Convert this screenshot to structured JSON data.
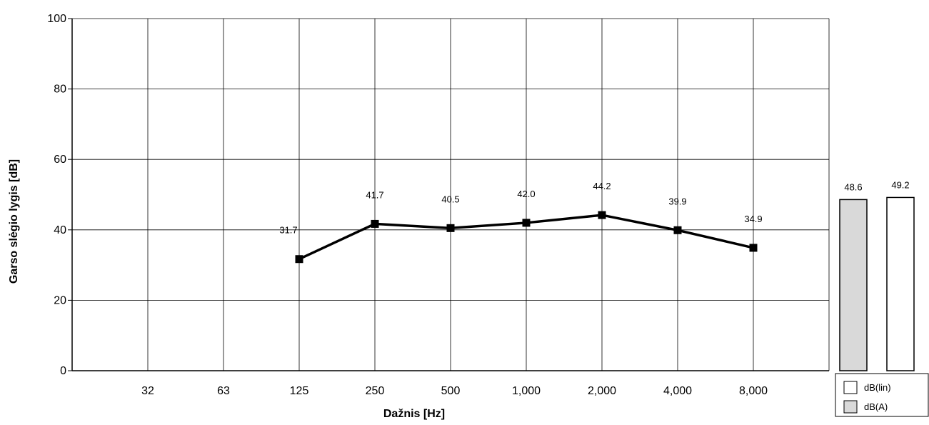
{
  "chart_data": {
    "type": "line",
    "xlabel": "Dažnis [Hz]",
    "ylabel": "Garso slėgio lygis [dB]",
    "ylim": [
      0,
      100
    ],
    "yticks": [
      "0",
      "20",
      "40",
      "60",
      "80",
      "100"
    ],
    "categories": [
      "32",
      "63",
      "125",
      "250",
      "500",
      "1,000",
      "2,000",
      "4,000",
      "8,000"
    ],
    "grid": true,
    "series": [
      {
        "values": [
          null,
          null,
          31.7,
          41.7,
          40.5,
          42.0,
          44.2,
          39.9,
          34.9
        ],
        "labels": [
          "",
          "",
          "31.7",
          "41.7",
          "40.5",
          "42.0",
          "44.2",
          "39.9",
          "34.9"
        ],
        "color": "#000000",
        "marker": "square"
      }
    ],
    "totals": {
      "type": "bar",
      "bars": [
        {
          "name": "dB(A)",
          "value": 48.6,
          "label": "48.6",
          "color": "#d9d9d9"
        },
        {
          "name": "dB(lin)",
          "value": 49.2,
          "label": "49.2",
          "color": "#ffffff"
        }
      ],
      "legend": [
        {
          "name": "dB(lin)",
          "color": "#ffffff"
        },
        {
          "name": "dB(A)",
          "color": "#d9d9d9"
        }
      ],
      "legend_position": "bottom-right"
    }
  }
}
